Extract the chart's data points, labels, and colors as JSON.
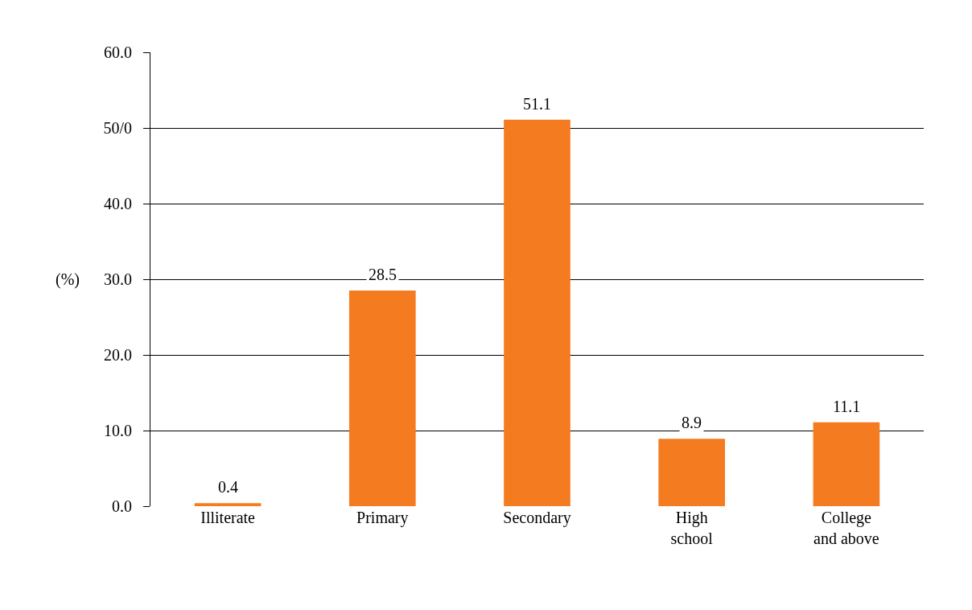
{
  "chart_data": {
    "type": "bar",
    "ylabel": "(%)",
    "categories": [
      "Illiterate",
      "Primary",
      "Secondary",
      "High school",
      "College and above"
    ],
    "values": [
      0.4,
      28.5,
      51.1,
      8.9,
      11.1
    ],
    "color": "#f47b20",
    "ylim": [
      0,
      60
    ],
    "yticks": [
      {
        "value": 0,
        "label": "0.0"
      },
      {
        "value": 10,
        "label": "10.0"
      },
      {
        "value": 20,
        "label": "20.0"
      },
      {
        "value": 30,
        "label": "30.0"
      },
      {
        "value": 40,
        "label": "40.0"
      },
      {
        "value": 50,
        "label": "50/0"
      },
      {
        "value": 60,
        "label": "60.0"
      }
    ],
    "grid": "y",
    "data_labels": true
  }
}
